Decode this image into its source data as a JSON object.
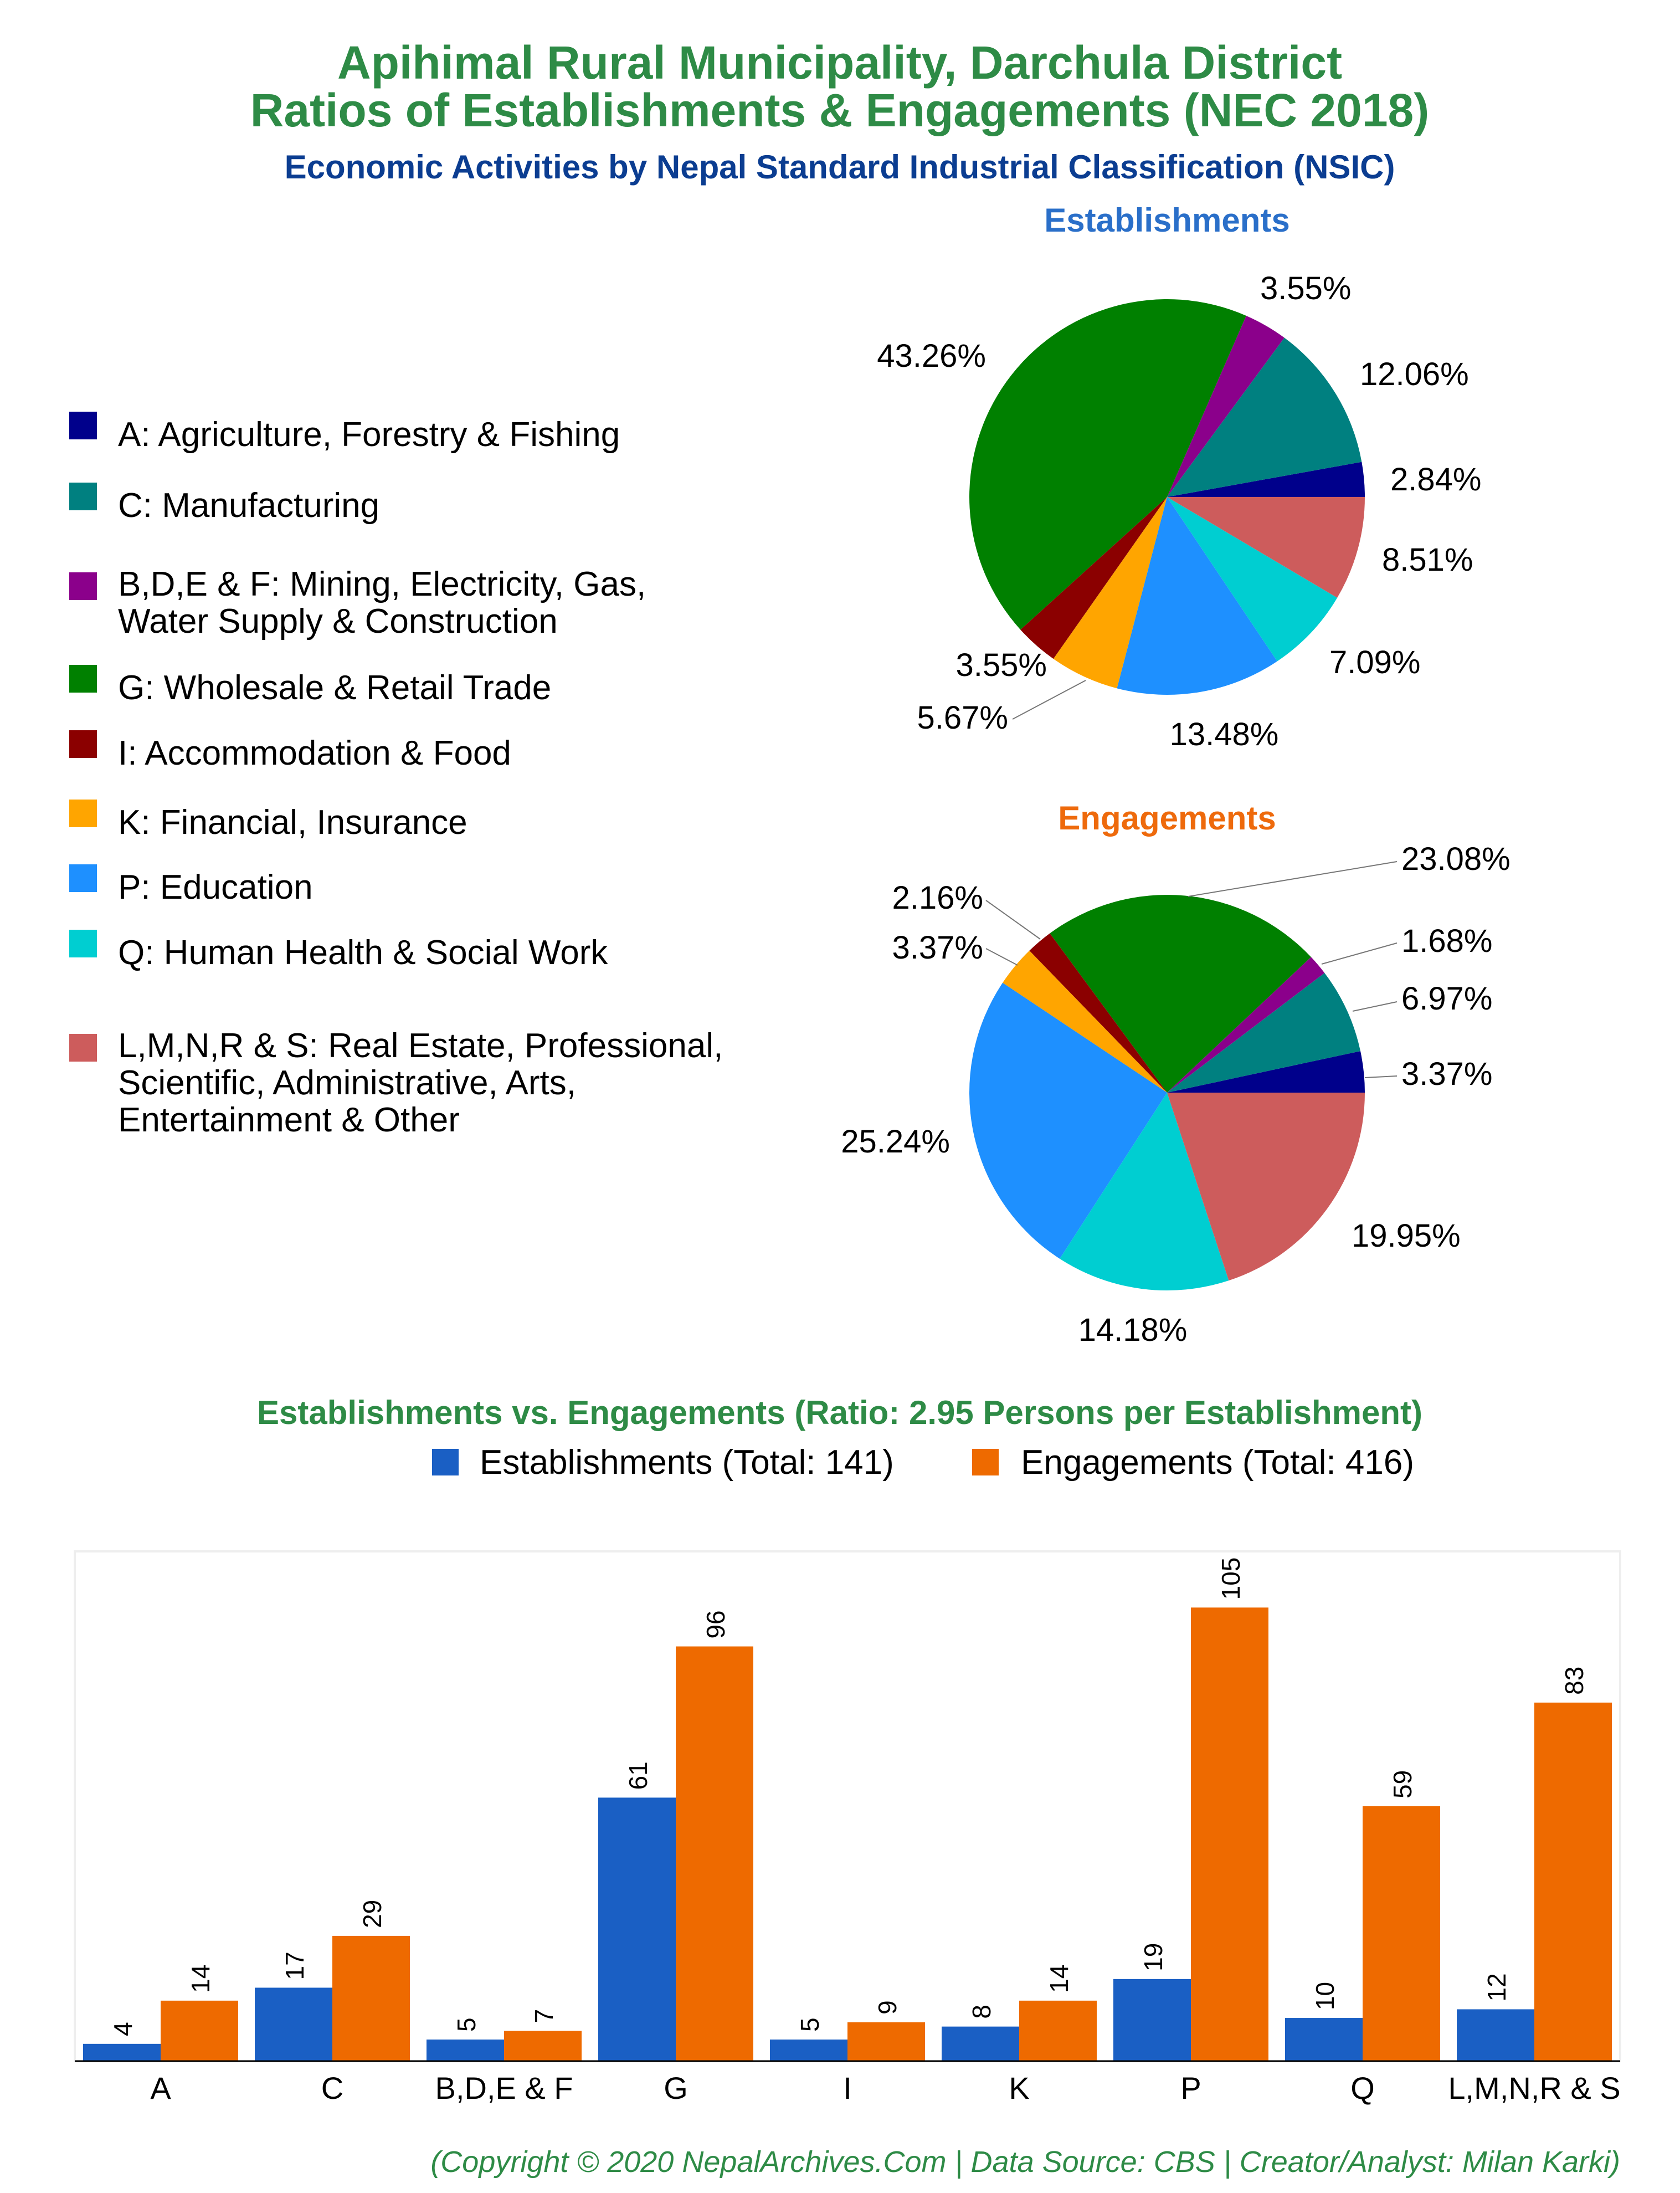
{
  "title_line1": "Apihimal Rural Municipality, Darchula District",
  "title_line2": "Ratios of Establishments & Engagements (NEC 2018)",
  "subtitle": "Economic Activities by Nepal Standard Industrial Classification (NSIC)",
  "colors": {
    "title": "#2e8b46",
    "subtitle": "#0b3d91",
    "establishments_title": "#2a6fc9",
    "engagements_title": "#ee6a0c",
    "bar_title": "#2e8b46",
    "footer": "#2e8b46",
    "bar_establishments": "#1a5fc4",
    "bar_engagements": "#ee6a00"
  },
  "legend": [
    {
      "key": "A",
      "lines": [
        "A: Agriculture, Forestry & Fishing"
      ],
      "color": "#00008b"
    },
    {
      "key": "C",
      "lines": [
        "C: Manufacturing"
      ],
      "color": "#008080"
    },
    {
      "key": "BDEF",
      "lines": [
        "B,D,E & F: Mining, Electricity, Gas,",
        "Water Supply & Construction"
      ],
      "color": "#8b008b"
    },
    {
      "key": "G",
      "lines": [
        "G: Wholesale & Retail Trade"
      ],
      "color": "#008000"
    },
    {
      "key": "I",
      "lines": [
        "I: Accommodation & Food"
      ],
      "color": "#8b0000"
    },
    {
      "key": "K",
      "lines": [
        "K: Financial, Insurance"
      ],
      "color": "#ffa500"
    },
    {
      "key": "P",
      "lines": [
        "P: Education"
      ],
      "color": "#1e90ff"
    },
    {
      "key": "Q",
      "lines": [
        "Q: Human Health & Social Work"
      ],
      "color": "#00ced1"
    },
    {
      "key": "LMNRS",
      "lines": [
        "L,M,N,R & S: Real Estate, Professional,",
        "Scientific, Administrative, Arts,",
        "Entertainment & Other"
      ],
      "color": "#cd5c5c"
    }
  ],
  "chart_data": [
    {
      "type": "pie",
      "title": "Establishments",
      "slices": [
        {
          "key": "A",
          "label": "2.84%",
          "value": 2.84,
          "color": "#00008b"
        },
        {
          "key": "C",
          "label": "12.06%",
          "value": 12.06,
          "color": "#008080"
        },
        {
          "key": "BDEF",
          "label": "3.55%",
          "value": 3.55,
          "color": "#8b008b"
        },
        {
          "key": "G",
          "label": "43.26%",
          "value": 43.26,
          "color": "#008000"
        },
        {
          "key": "I",
          "label": "3.55%",
          "value": 3.55,
          "color": "#8b0000"
        },
        {
          "key": "K",
          "label": "5.67%",
          "value": 5.67,
          "color": "#ffa500"
        },
        {
          "key": "P",
          "label": "13.48%",
          "value": 13.48,
          "color": "#1e90ff"
        },
        {
          "key": "Q",
          "label": "7.09%",
          "value": 7.09,
          "color": "#00ced1"
        },
        {
          "key": "LMNRS",
          "label": "8.51%",
          "value": 8.51,
          "color": "#cd5c5c"
        }
      ]
    },
    {
      "type": "pie",
      "title": "Engagements",
      "slices": [
        {
          "key": "A",
          "label": "3.37%",
          "value": 3.37,
          "color": "#00008b"
        },
        {
          "key": "C",
          "label": "6.97%",
          "value": 6.97,
          "color": "#008080"
        },
        {
          "key": "BDEF",
          "label": "1.68%",
          "value": 1.68,
          "color": "#8b008b"
        },
        {
          "key": "G",
          "label": "23.08%",
          "value": 23.08,
          "color": "#008000"
        },
        {
          "key": "I",
          "label": "2.16%",
          "value": 2.16,
          "color": "#8b0000"
        },
        {
          "key": "K",
          "label": "3.37%",
          "value": 3.37,
          "color": "#ffa500"
        },
        {
          "key": "P",
          "label": "25.24%",
          "value": 25.24,
          "color": "#1e90ff"
        },
        {
          "key": "Q",
          "label": "14.18%",
          "value": 14.18,
          "color": "#00ced1"
        },
        {
          "key": "LMNRS",
          "label": "19.95%",
          "value": 19.95,
          "color": "#cd5c5c"
        }
      ]
    },
    {
      "type": "bar",
      "title": "Establishments vs. Engagements (Ratio: 2.95 Persons per Establishment)",
      "categories": [
        "A",
        "C",
        "B,D,E & F",
        "G",
        "I",
        "K",
        "P",
        "Q",
        "L,M,N,R & S"
      ],
      "series": [
        {
          "name": "Establishments (Total: 141)",
          "values": [
            4,
            17,
            5,
            61,
            5,
            8,
            19,
            10,
            12
          ]
        },
        {
          "name": "Engagements (Total: 416)",
          "values": [
            14,
            29,
            7,
            96,
            9,
            14,
            105,
            59,
            83
          ]
        }
      ],
      "ylim": [
        0,
        118
      ],
      "grid": false,
      "legend": "top"
    }
  ],
  "footer": "(Copyright © 2020 NepalArchives.Com | Data Source: CBS | Creator/Analyst: Milan Karki)"
}
